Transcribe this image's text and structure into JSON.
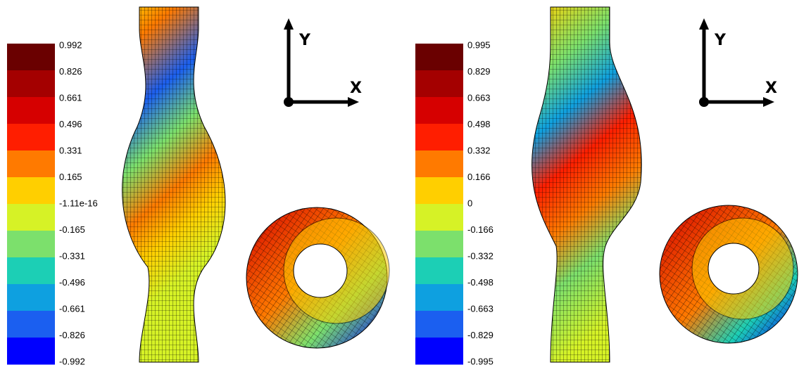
{
  "panels": [
    {
      "colorbar": {
        "labels": [
          "0.992",
          "0.826",
          "0.661",
          "0.496",
          "0.331",
          "0.165",
          "-1.11e-16",
          "-0.165",
          "-0.331",
          "-0.496",
          "-0.661",
          "-0.826",
          "-0.992"
        ],
        "colors": [
          "#6a0000",
          "#a40000",
          "#d60000",
          "#ff1e00",
          "#ff7a00",
          "#ffcf00",
          "#d6f226",
          "#7ce06c",
          "#1ccfb5",
          "#0ea0e0",
          "#1b5ff0",
          "#0000ff"
        ]
      },
      "axes": {
        "x": "X",
        "y": "Y"
      }
    },
    {
      "colorbar": {
        "labels": [
          "0.995",
          "0.829",
          "0.663",
          "0.498",
          "0.332",
          "0.166",
          "0",
          "-0.166",
          "-0.332",
          "-0.498",
          "-0.663",
          "-0.829",
          "-0.995"
        ],
        "colors": [
          "#6a0000",
          "#a40000",
          "#d60000",
          "#ff1e00",
          "#ff7a00",
          "#ffcf00",
          "#d6f226",
          "#7ce06c",
          "#1ccfb5",
          "#0ea0e0",
          "#1b5ff0",
          "#0000ff"
        ]
      },
      "axes": {
        "x": "X",
        "y": "Y"
      }
    }
  ]
}
